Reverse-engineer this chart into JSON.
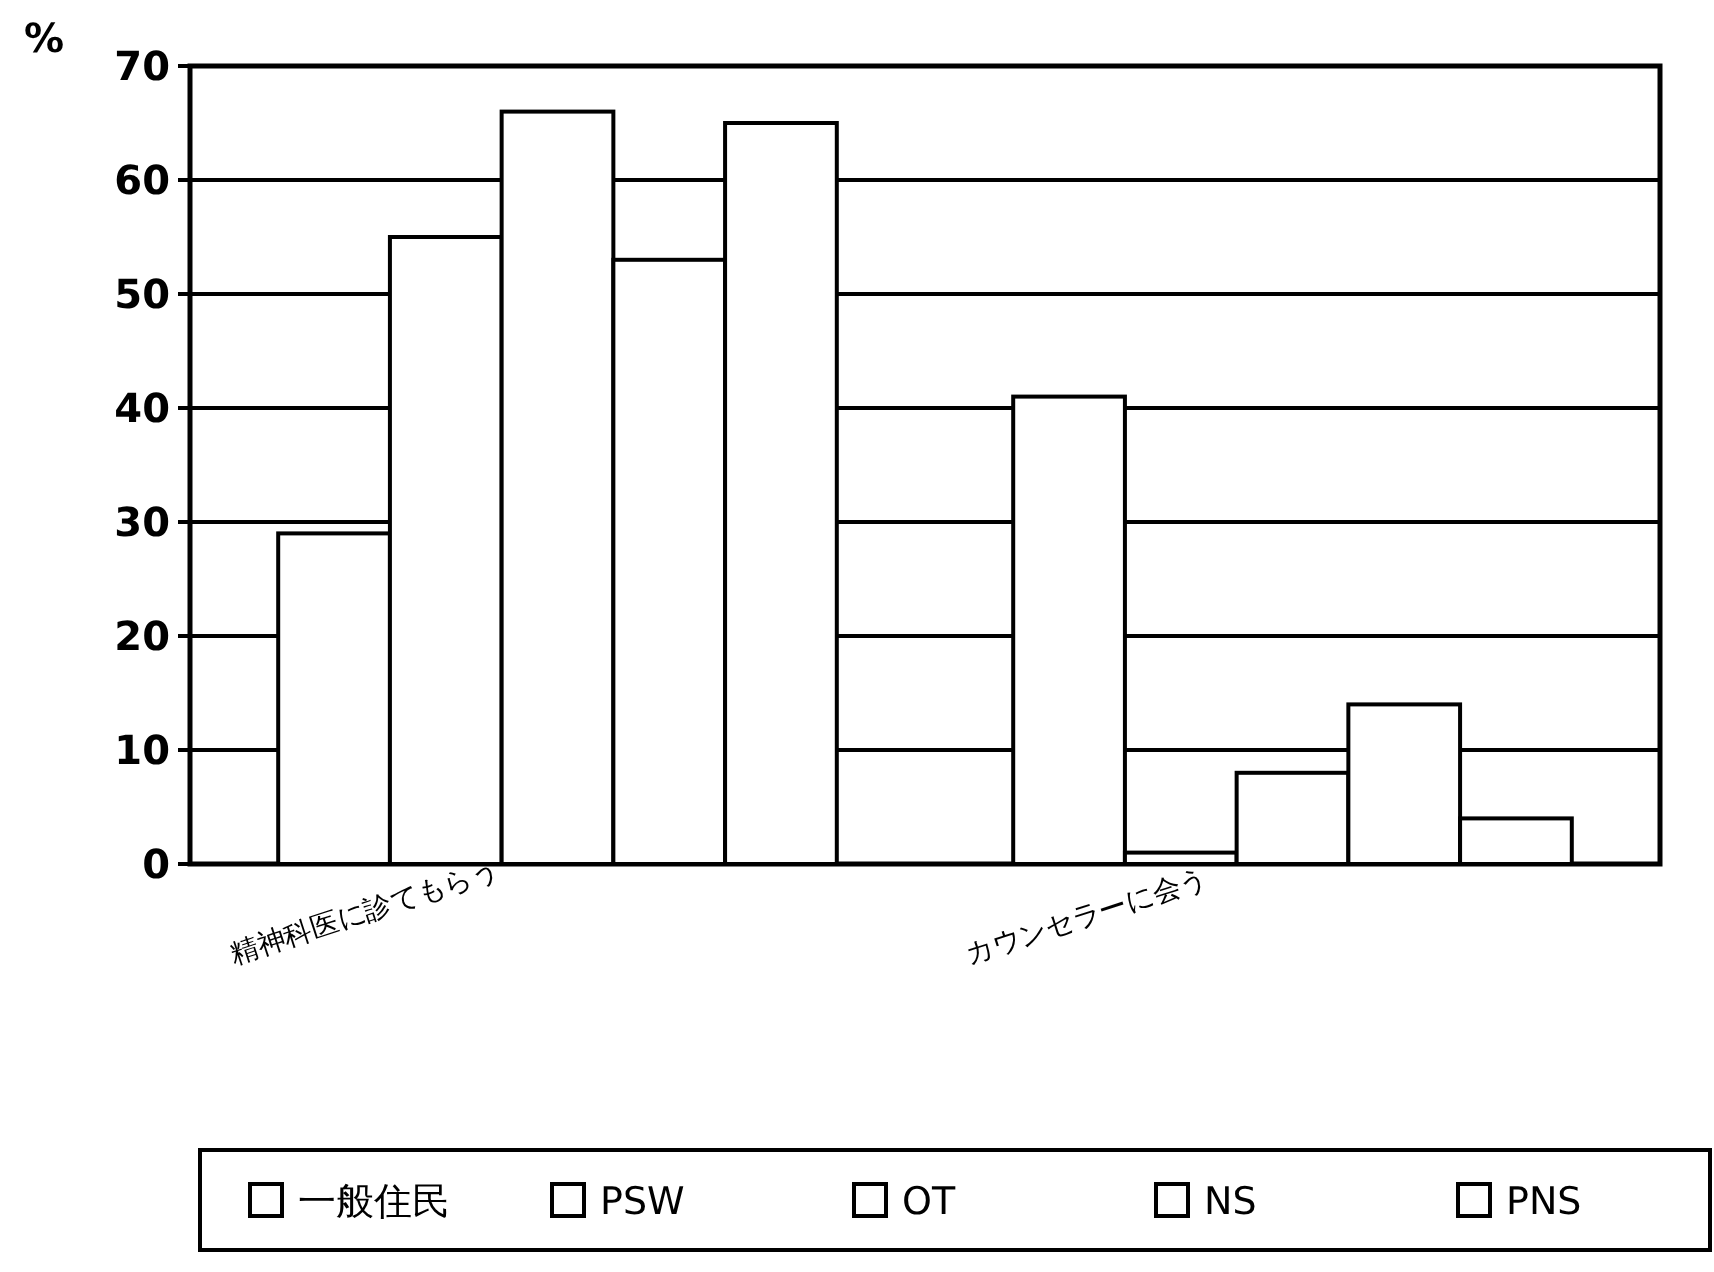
{
  "chart_data": {
    "type": "bar",
    "ylabel": "%",
    "categories": [
      "精神科医に診てもらう",
      "カウンセラーに会う"
    ],
    "series": [
      {
        "name": "一般住民",
        "color": "#ffffff",
        "values": [
          29,
          41
        ]
      },
      {
        "name": "PSW",
        "color": "#ffffff",
        "values": [
          55,
          1
        ]
      },
      {
        "name": "OT",
        "color": "#ffffff",
        "values": [
          66,
          8
        ]
      },
      {
        "name": "NS",
        "color": "#ffffff",
        "values": [
          53,
          14
        ]
      },
      {
        "name": "PNS",
        "color": "#ffffff",
        "values": [
          65,
          4
        ]
      }
    ],
    "ylim": [
      0,
      70
    ],
    "yticks": [
      0,
      10,
      20,
      30,
      40,
      50,
      60,
      70
    ],
    "grid": "y",
    "legend": "bottom"
  }
}
